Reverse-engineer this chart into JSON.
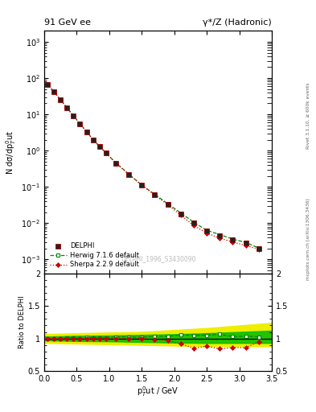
{
  "title_left": "91 GeV ee",
  "title_right": "γ*/Z (Hadronic)",
  "ylabel_main": "N dσ/dp$_T^0$ut",
  "ylabel_ratio": "Ratio to DELPHI",
  "xlabel": "p$_T^0$ut / GeV",
  "watermark": "DELPHI_1996_S3430090",
  "rivet_text": "Rivet 3.1.10, ≥ 600k events",
  "arxiv_text": "mcplots.cern.ch [arXiv:1306.3436]",
  "delphi_x": [
    0.05,
    0.15,
    0.25,
    0.35,
    0.45,
    0.55,
    0.65,
    0.75,
    0.85,
    0.95,
    1.1,
    1.3,
    1.5,
    1.7,
    1.9,
    2.1,
    2.3,
    2.5,
    2.7,
    2.9,
    3.1,
    3.3
  ],
  "delphi_y": [
    65.0,
    42.0,
    25.0,
    15.0,
    9.0,
    5.5,
    3.3,
    2.0,
    1.3,
    0.85,
    0.45,
    0.22,
    0.11,
    0.06,
    0.033,
    0.018,
    0.01,
    0.006,
    0.0045,
    0.0035,
    0.0028,
    0.002
  ],
  "delphi_yerr": [
    3.0,
    2.0,
    1.2,
    0.7,
    0.4,
    0.25,
    0.15,
    0.09,
    0.06,
    0.04,
    0.02,
    0.01,
    0.005,
    0.003,
    0.0015,
    0.001,
    0.0005,
    0.0003,
    0.0002,
    0.0002,
    0.00015,
    0.0001
  ],
  "herwig_x": [
    0.05,
    0.15,
    0.25,
    0.35,
    0.45,
    0.55,
    0.65,
    0.75,
    0.85,
    0.95,
    1.1,
    1.3,
    1.5,
    1.7,
    1.9,
    2.1,
    2.3,
    2.5,
    2.7,
    2.9,
    3.1,
    3.3
  ],
  "herwig_y": [
    65.0,
    42.0,
    25.0,
    15.2,
    9.1,
    5.5,
    3.35,
    2.02,
    1.31,
    0.86,
    0.46,
    0.225,
    0.112,
    0.062,
    0.034,
    0.019,
    0.0105,
    0.0063,
    0.0048,
    0.0036,
    0.0029,
    0.00205
  ],
  "sherpa_x": [
    0.05,
    0.15,
    0.25,
    0.35,
    0.45,
    0.55,
    0.65,
    0.75,
    0.85,
    0.95,
    1.1,
    1.3,
    1.5,
    1.7,
    1.9,
    2.1,
    2.3,
    2.5,
    2.7,
    2.9,
    3.1,
    3.3
  ],
  "sherpa_y": [
    65.0,
    42.0,
    25.0,
    15.0,
    9.0,
    5.5,
    3.3,
    2.0,
    1.3,
    0.85,
    0.45,
    0.22,
    0.11,
    0.059,
    0.032,
    0.0165,
    0.0085,
    0.0053,
    0.0038,
    0.003,
    0.0024,
    0.0019
  ],
  "herwig_ratio": [
    1.0,
    1.0,
    1.0,
    1.01,
    1.01,
    1.0,
    1.015,
    1.01,
    1.008,
    1.012,
    1.022,
    1.023,
    1.018,
    1.033,
    1.03,
    1.055,
    1.05,
    1.05,
    1.065,
    1.028,
    1.035,
    1.025
  ],
  "sherpa_ratio": [
    1.0,
    1.0,
    1.0,
    1.0,
    1.0,
    1.0,
    1.0,
    1.0,
    1.0,
    1.0,
    1.0,
    1.0,
    1.0,
    0.98,
    0.97,
    0.917,
    0.85,
    0.88,
    0.84,
    0.86,
    0.857,
    0.95
  ],
  "band_x": [
    0.0,
    0.1,
    0.5,
    1.0,
    1.5,
    2.0,
    2.5,
    3.0,
    3.5
  ],
  "band_yellow_lo": [
    0.93,
    0.93,
    0.92,
    0.91,
    0.9,
    0.89,
    0.88,
    0.88,
    0.88
  ],
  "band_yellow_hi": [
    1.07,
    1.07,
    1.08,
    1.09,
    1.1,
    1.13,
    1.16,
    1.2,
    1.24
  ],
  "band_green_lo": [
    0.97,
    0.97,
    0.96,
    0.955,
    0.945,
    0.935,
    0.93,
    0.93,
    0.93
  ],
  "band_green_hi": [
    1.03,
    1.03,
    1.04,
    1.045,
    1.055,
    1.065,
    1.08,
    1.1,
    1.12
  ],
  "xlim": [
    0,
    3.5
  ],
  "ylim_main": [
    0.0004,
    2000
  ],
  "ylim_ratio": [
    0.5,
    2.0
  ],
  "color_delphi": "#222222",
  "color_herwig": "#008800",
  "color_sherpa": "#cc0000",
  "color_band_yellow": "#eeee00",
  "color_band_green": "#00bb00",
  "bg_color": "#ffffff"
}
